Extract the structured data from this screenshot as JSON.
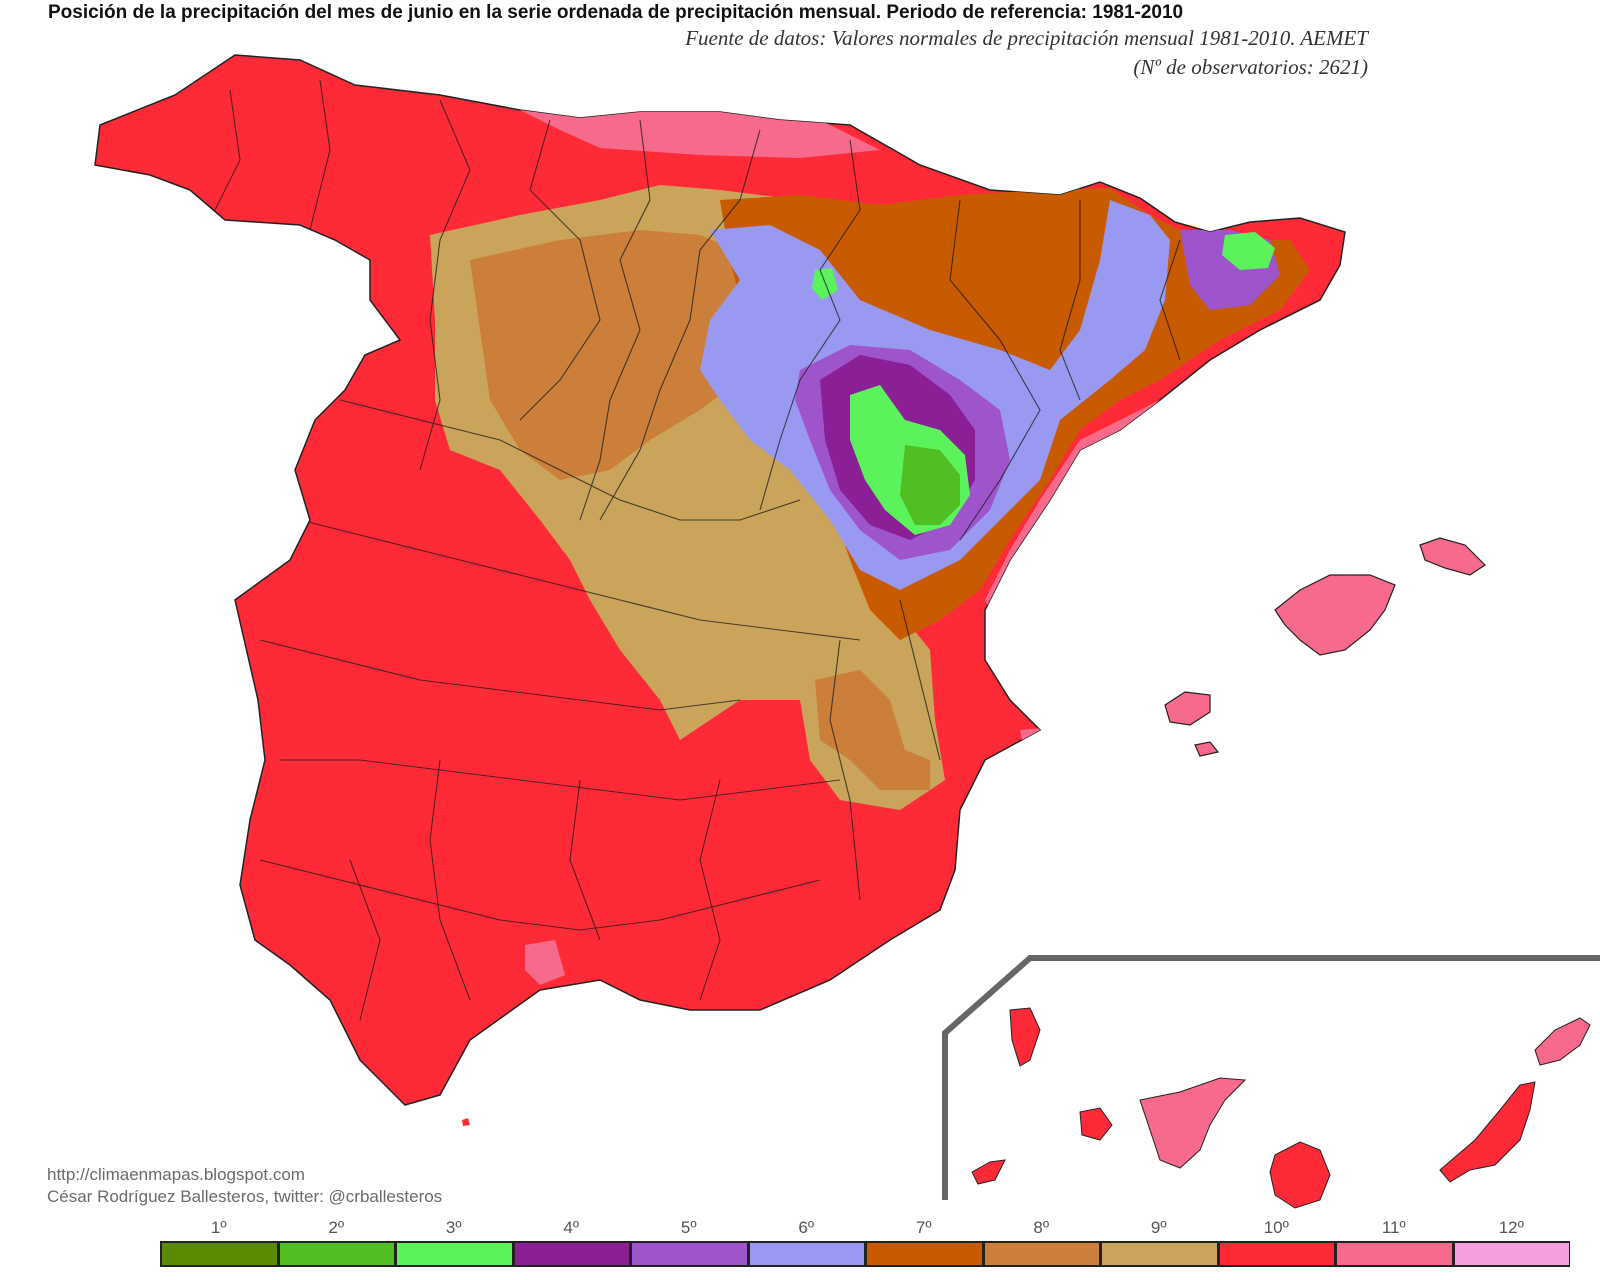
{
  "header": {
    "title": "Posición de la precipitación del mes de junio en la serie ordenada de precipitación mensual. Periodo de referencia: 1981-2010",
    "source": "Fuente de datos: Valores normales de precipitación mensual 1981-2010. AEMET",
    "observatories": "(Nº de observatorios: 2621)"
  },
  "credits": {
    "url": "http://climaenmapas.blogspot.com",
    "author": "César Rodríguez Ballesteros, twitter: @crballesteros"
  },
  "legend": {
    "items": [
      {
        "label": "1º",
        "color": "#5a8a00"
      },
      {
        "label": "2º",
        "color": "#4fbf24"
      },
      {
        "label": "3º",
        "color": "#5cf25c"
      },
      {
        "label": "4º",
        "color": "#8a1f96"
      },
      {
        "label": "5º",
        "color": "#9e55cc"
      },
      {
        "label": "6º",
        "color": "#9999f2"
      },
      {
        "label": "7º",
        "color": "#c85a00"
      },
      {
        "label": "8º",
        "color": "#cc7f3a"
      },
      {
        "label": "9º",
        "color": "#c9a45a"
      },
      {
        "label": "10º",
        "color": "#ff2a38"
      },
      {
        "label": "11º",
        "color": "#f76a8c"
      },
      {
        "label": "12º",
        "color": "#f59ee0"
      }
    ]
  },
  "map": {
    "region_colors": {
      "dominant": "#ff2a38",
      "north_coast": "#f76a8c",
      "central": "#c9a45a",
      "inner_central": "#cc7f3a",
      "ebro_outer": "#c85a00",
      "ebro_mid": "#9999f2",
      "ebro_inner": "#9e55cc",
      "ebro_deep": "#8a1f96",
      "ebro_core": "#5cf25c",
      "ebro_center": "#4fbf24"
    }
  }
}
